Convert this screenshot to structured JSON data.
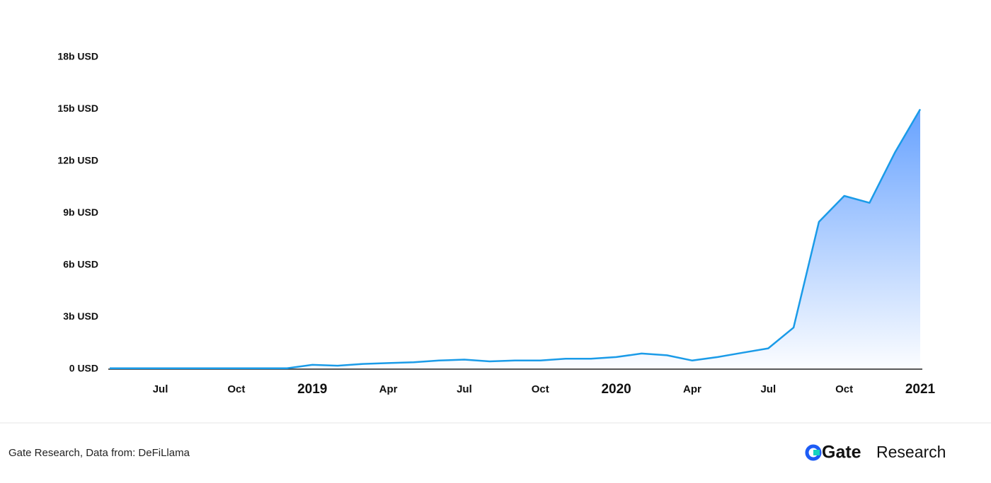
{
  "chart_data": {
    "type": "area",
    "x": [
      "2018-05",
      "2018-06",
      "2018-07",
      "2018-08",
      "2018-09",
      "2018-10",
      "2018-11",
      "2018-12",
      "2019-01",
      "2019-02",
      "2019-03",
      "2019-04",
      "2019-05",
      "2019-06",
      "2019-07",
      "2019-08",
      "2019-09",
      "2019-10",
      "2019-11",
      "2019-12",
      "2020-01",
      "2020-02",
      "2020-03",
      "2020-04",
      "2020-05",
      "2020-06",
      "2020-07",
      "2020-08",
      "2020-09",
      "2020-10",
      "2020-11",
      "2020-12",
      "2021-01"
    ],
    "values": [
      0.05,
      0.05,
      0.05,
      0.05,
      0.05,
      0.05,
      0.05,
      0.05,
      0.25,
      0.2,
      0.3,
      0.35,
      0.4,
      0.5,
      0.55,
      0.45,
      0.5,
      0.5,
      0.6,
      0.6,
      0.7,
      0.9,
      0.8,
      0.5,
      0.7,
      0.95,
      1.2,
      2.4,
      8.5,
      10.0,
      9.6,
      12.5,
      15.0
    ],
    "color": "#1a9be8",
    "xlim": [
      "2018-05",
      "2021-01"
    ],
    "xticks": [
      {
        "value": "2018-07",
        "label": "Jul"
      },
      {
        "value": "2018-10",
        "label": "Oct"
      },
      {
        "value": "2019-01",
        "label": "2019"
      },
      {
        "value": "2019-04",
        "label": "Apr"
      },
      {
        "value": "2019-07",
        "label": "Jul"
      },
      {
        "value": "2019-10",
        "label": "Oct"
      },
      {
        "value": "2020-01",
        "label": "2020"
      },
      {
        "value": "2020-04",
        "label": "Apr"
      },
      {
        "value": "2020-07",
        "label": "Jul"
      },
      {
        "value": "2020-10",
        "label": "Oct"
      },
      {
        "value": "2021-01",
        "label": "2021"
      }
    ],
    "ylim": [
      0,
      18
    ],
    "yticks": [
      {
        "value": 0,
        "label": "0 USD"
      },
      {
        "value": 3,
        "label": "3b USD"
      },
      {
        "value": 6,
        "label": "6b USD"
      },
      {
        "value": 9,
        "label": "9b USD"
      },
      {
        "value": 12,
        "label": "12b USD"
      },
      {
        "value": 15,
        "label": "15b USD"
      },
      {
        "value": 18,
        "label": "18b USD"
      }
    ],
    "grid": false
  },
  "footer": {
    "source": "Gate Research, Data from: DeFiLlama",
    "logo_brand": "Gate",
    "logo_text": "Research"
  }
}
